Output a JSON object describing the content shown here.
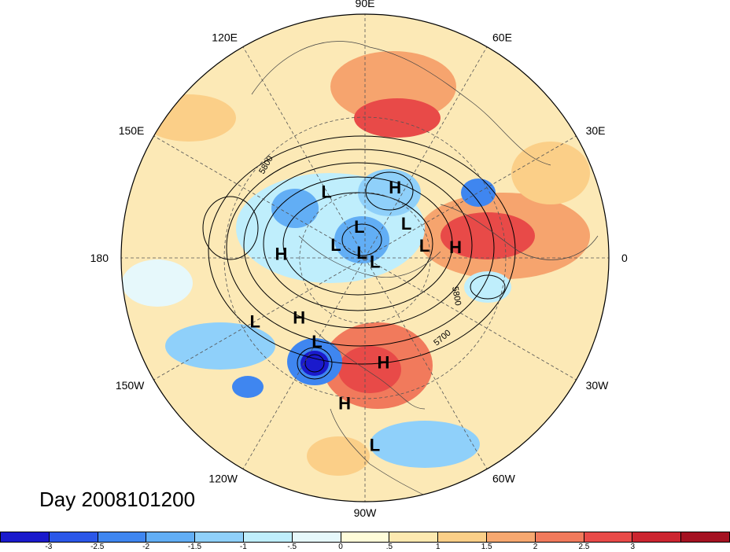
{
  "map": {
    "projection": "polar-stereographic-north",
    "longitude_labels": [
      {
        "text": "90E",
        "lon": 90
      },
      {
        "text": "60E",
        "lon": 60
      },
      {
        "text": "30E",
        "lon": 30
      },
      {
        "text": "0",
        "lon": 0
      },
      {
        "text": "30W",
        "lon": -30
      },
      {
        "text": "60W",
        "lon": -60
      },
      {
        "text": "90W",
        "lon": -90
      },
      {
        "text": "120W",
        "lon": -120
      },
      {
        "text": "150W",
        "lon": -150
      },
      {
        "text": "180",
        "lon": 180
      },
      {
        "text": "150E",
        "lon": 150
      },
      {
        "text": "120E",
        "lon": 120
      }
    ],
    "pressure_centers": [
      {
        "type": "L",
        "lon": 120,
        "lat": 55
      },
      {
        "type": "H",
        "lon": 67,
        "lat": 55
      },
      {
        "type": "L",
        "lon": 100,
        "lat": 75
      },
      {
        "type": "L",
        "lon": 40,
        "lat": 65
      },
      {
        "type": "L",
        "lon": 155,
        "lat": 75
      },
      {
        "type": "H",
        "lon": 7,
        "lat": 49
      },
      {
        "type": "L",
        "lon": 120,
        "lat": 87
      },
      {
        "type": "L",
        "lon": -20,
        "lat": 85
      },
      {
        "type": "L",
        "lon": 12,
        "lat": 62
      },
      {
        "type": "H",
        "lon": 177,
        "lat": 52
      },
      {
        "type": "H",
        "lon": -138,
        "lat": 50
      },
      {
        "type": "L",
        "lon": -120,
        "lat": 47
      },
      {
        "type": "H",
        "lon": -80,
        "lat": 43
      },
      {
        "type": "L",
        "lon": -150,
        "lat": 35
      },
      {
        "type": "H",
        "lon": -98,
        "lat": 28
      },
      {
        "type": "L",
        "lon": -87,
        "lat": 15
      }
    ],
    "contour_labels": [
      "5800",
      "5800",
      "5700"
    ]
  },
  "date_label": "Day 2008101200",
  "colorbar": {
    "colors": [
      "#1a1acc",
      "#2b57e8",
      "#3f86f0",
      "#62aef5",
      "#8fd0fa",
      "#bfeefc",
      "#e6f8fb",
      "#fffcd9",
      "#fde9b0",
      "#fbcf88",
      "#f7a870",
      "#f17a5c",
      "#e84a48",
      "#cc2530",
      "#a51222"
    ],
    "tick_labels": [
      "-3",
      "-2.5",
      "-2",
      "-1.5",
      "-1",
      "-.5",
      "0",
      ".5",
      "1",
      "1.5",
      "2",
      "2.5",
      "3"
    ]
  }
}
